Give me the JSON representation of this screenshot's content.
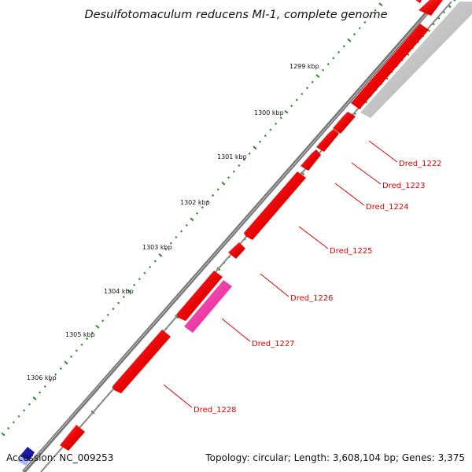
{
  "title": "Desulfotomaculum reducens MI-1, complete genome",
  "footer": {
    "accession": "Accession: NC_009253",
    "summary": "Topology: circular; Length: 3,608,104 bp; Genes: 3,375"
  },
  "colors": {
    "background": "#ffffff",
    "backbone": "#777777",
    "cds_forward": "#ee0000",
    "cds_reverse": "#ee0000",
    "highlight_gene": "#ff33aa",
    "gray_track": "#c8c8c8",
    "gc_ticks": "#2a8a2a",
    "label_text": "#e00000",
    "blue_feature": "#1a1aaa"
  },
  "kbp_ticks": [
    "1299 kbp",
    "1300 kbp",
    "1301 kbp",
    "1302 kbp",
    "1303 kbp",
    "1304 kbp",
    "1305 kbp",
    "1306 kbp"
  ],
  "genes": [
    "Dred_1222",
    "Dred_1223",
    "Dred_1224",
    "Dred_1225",
    "Dred_1226",
    "Dred_1227",
    "Dred_1228"
  ]
}
